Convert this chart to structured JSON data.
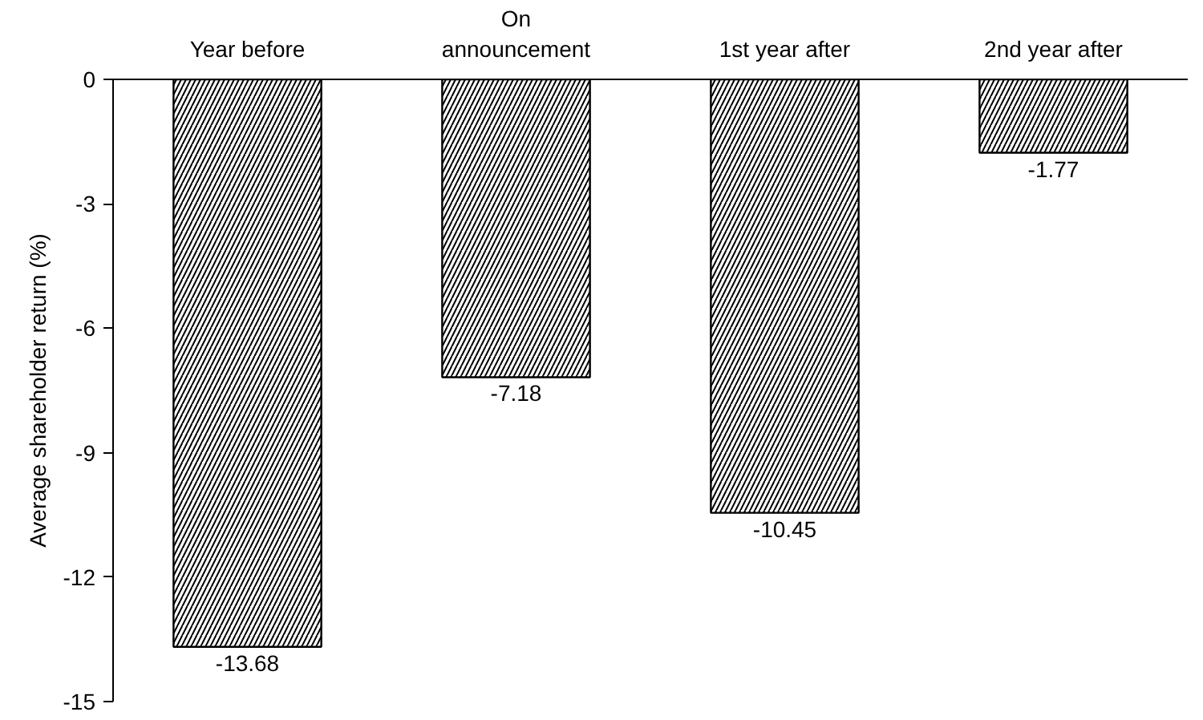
{
  "chart_data": {
    "type": "bar",
    "ylabel": "Average shareholder return (%)",
    "categories": [
      "Year before",
      "On announcement",
      "1st year after",
      "2nd year after"
    ],
    "values": [
      -13.68,
      -7.18,
      -10.45,
      -1.77
    ],
    "color": "#ffffff",
    "ylim": [
      -15,
      0
    ],
    "yticks": [
      0,
      -3,
      -6,
      -9,
      -12,
      -15
    ],
    "data_labels": true,
    "grid": false
  }
}
